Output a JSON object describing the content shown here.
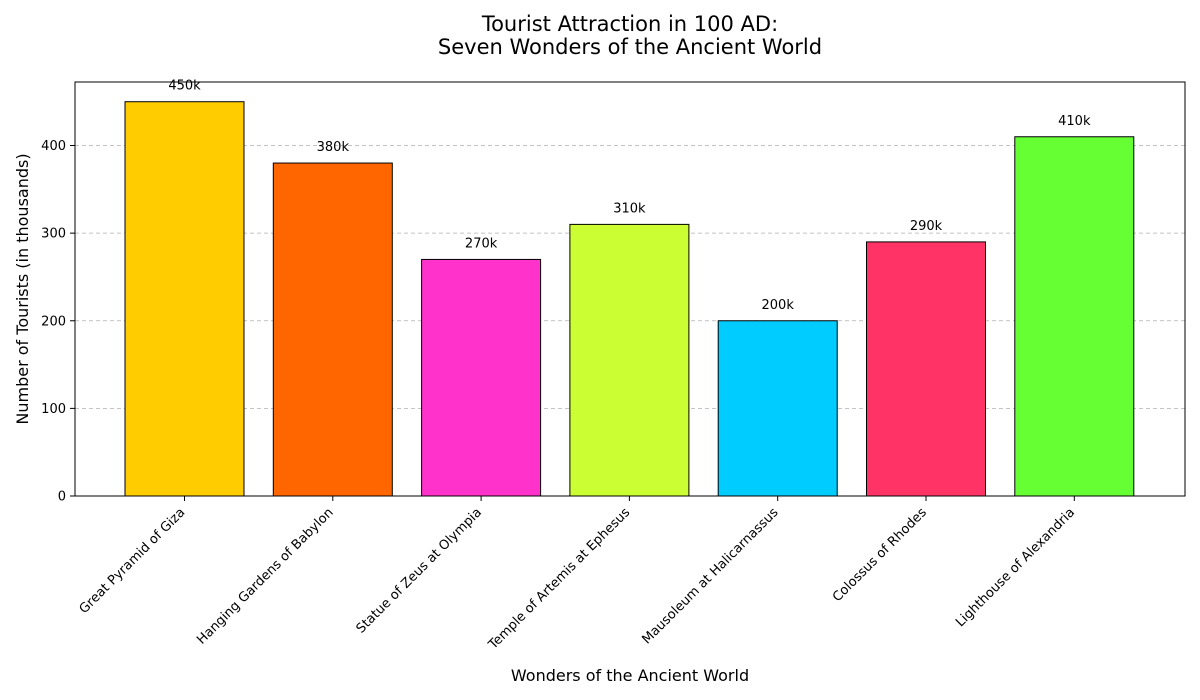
{
  "chart_data": {
    "type": "bar",
    "title": "Tourist Attraction in 100 AD:",
    "subtitle": "Seven Wonders of the Ancient World",
    "xlabel": "Wonders of the Ancient World",
    "ylabel": "Number of Tourists (in thousands)",
    "categories": [
      "Great Pyramid of Giza",
      "Hanging Gardens of Babylon",
      "Statue of Zeus at Olympia",
      "Temple of Artemis at Ephesus",
      "Mausoleum at Halicarnassus",
      "Colossus of Rhodes",
      "Lighthouse of Alexandria"
    ],
    "values": [
      450,
      380,
      270,
      310,
      200,
      290,
      410
    ],
    "data_labels": [
      "450k",
      "380k",
      "270k",
      "310k",
      "200k",
      "290k",
      "410k"
    ],
    "colors": [
      "#FFCC00",
      "#FF6600",
      "#FF33CC",
      "#CCFF33",
      "#00CCFF",
      "#FF3366",
      "#66FF33"
    ],
    "ylim": [
      0,
      472.5
    ],
    "yticks": [
      0,
      100,
      200,
      300,
      400
    ],
    "grid": "y-dashed",
    "legend": "none"
  }
}
